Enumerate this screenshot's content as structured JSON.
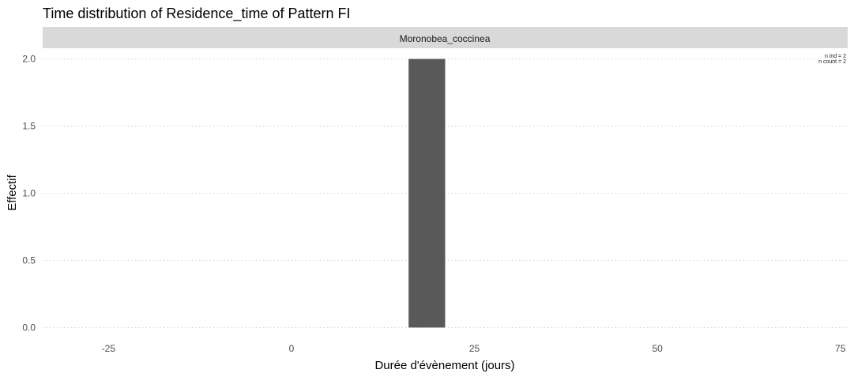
{
  "chart_data": {
    "type": "bar",
    "title": "Time distribution of Residence_time of Pattern FI",
    "facet_label": "Moronobea_coccinea",
    "xlabel": "Durée d'évènement (jours)",
    "ylabel": "Effectif",
    "xlim": [
      -34,
      76
    ],
    "ylim": [
      -0.08,
      2.08
    ],
    "x_ticks": [
      -25,
      0,
      25,
      50,
      75
    ],
    "x_tick_labels": [
      "-25",
      "0",
      "25",
      "50",
      "75"
    ],
    "y_ticks": [
      0,
      0.5,
      1,
      1.5,
      2
    ],
    "y_tick_labels": [
      "0.0",
      "0.5",
      "1.0",
      "1.5",
      "2.0"
    ],
    "grid": "horizontal-dotted",
    "bars": [
      {
        "x_start": 16,
        "x_end": 21,
        "value": 2
      }
    ],
    "annotations": [
      "n ind =  2",
      "n count =  2"
    ],
    "colors": {
      "bar": "#595959",
      "strip": "#d9d9d9",
      "grid": "#d9d9d9"
    }
  }
}
